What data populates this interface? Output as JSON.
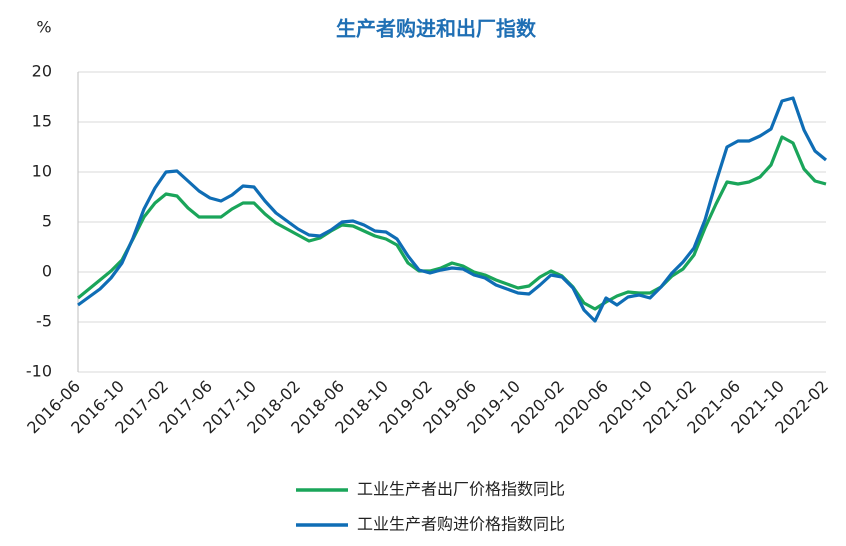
{
  "chart_data": {
    "type": "line",
    "title": "生产者购进和出厂指数",
    "y_label": "%",
    "categories": [
      "2016-06",
      null,
      null,
      null,
      "2016-10",
      null,
      null,
      null,
      "2017-02",
      null,
      null,
      null,
      "2017-06",
      null,
      null,
      null,
      "2017-10",
      null,
      null,
      null,
      "2018-02",
      null,
      null,
      null,
      "2018-06",
      null,
      null,
      null,
      "2018-10",
      null,
      null,
      null,
      "2019-02",
      null,
      null,
      null,
      "2019-06",
      null,
      null,
      null,
      "2019-10",
      null,
      null,
      null,
      "2020-02",
      null,
      null,
      null,
      "2020-06",
      null,
      null,
      null,
      "2020-10",
      null,
      null,
      null,
      "2021-02",
      null,
      null,
      null,
      "2021-06",
      null,
      null,
      null,
      "2021-10",
      null,
      null,
      null,
      "2022-02"
    ],
    "series": [
      {
        "name": "工业生产者出厂价格指数同比",
        "color": "#1aa55a",
        "values": [
          -2.6,
          -1.7,
          -0.8,
          0.1,
          1.2,
          3.3,
          5.5,
          6.9,
          7.8,
          7.6,
          6.4,
          5.5,
          5.5,
          5.5,
          6.3,
          6.9,
          6.9,
          5.8,
          4.9,
          4.3,
          3.7,
          3.1,
          3.4,
          4.1,
          4.7,
          4.6,
          4.1,
          3.6,
          3.3,
          2.7,
          0.9,
          0.1,
          0.1,
          0.4,
          0.9,
          0.6,
          0.0,
          -0.3,
          -0.8,
          -1.2,
          -1.6,
          -1.4,
          -0.5,
          0.1,
          -0.4,
          -1.5,
          -3.1,
          -3.7,
          -3.0,
          -2.4,
          -2.0,
          -2.1,
          -2.1,
          -1.5,
          -0.4,
          0.3,
          1.7,
          4.4,
          6.8,
          9.0,
          8.8,
          9.0,
          9.5,
          10.7,
          13.5,
          12.9,
          10.3,
          9.1,
          8.8
        ]
      },
      {
        "name": "工业生产者购进价格指数同比",
        "color": "#0f6db5",
        "values": [
          -3.3,
          -2.5,
          -1.7,
          -0.6,
          0.9,
          3.4,
          6.3,
          8.4,
          10.0,
          10.1,
          9.1,
          8.1,
          7.4,
          7.1,
          7.7,
          8.6,
          8.5,
          7.1,
          5.9,
          5.1,
          4.3,
          3.7,
          3.6,
          4.2,
          5.0,
          5.1,
          4.7,
          4.1,
          4.0,
          3.3,
          1.6,
          0.2,
          -0.1,
          0.2,
          0.4,
          0.3,
          -0.3,
          -0.6,
          -1.3,
          -1.7,
          -2.1,
          -2.2,
          -1.3,
          -0.3,
          -0.5,
          -1.6,
          -3.8,
          -4.9,
          -2.6,
          -3.3,
          -2.5,
          -2.3,
          -2.6,
          -1.5,
          -0.1,
          1.0,
          2.4,
          5.2,
          9.0,
          12.5,
          13.1,
          13.1,
          13.6,
          14.3,
          17.1,
          17.4,
          14.2,
          12.1,
          11.2
        ]
      }
    ],
    "ylim": [
      -10,
      20
    ],
    "yticks": [
      -10,
      -5,
      0,
      5,
      10,
      15,
      20
    ],
    "grid": true,
    "legend": "bottom"
  }
}
